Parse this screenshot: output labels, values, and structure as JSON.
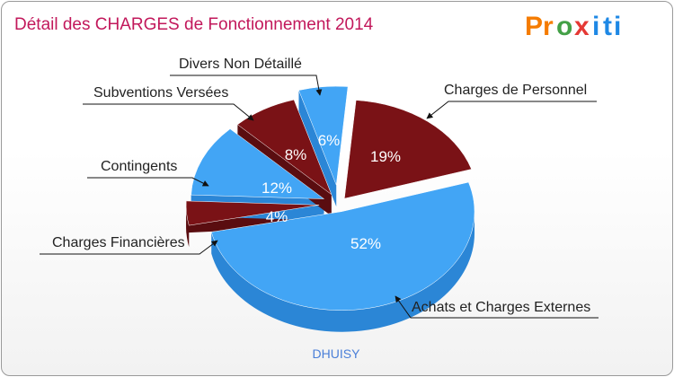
{
  "chart_data": {
    "type": "pie",
    "title": "Détail des CHARGES de Fonctionnement 2014",
    "subtitle": "DHUISY",
    "slices": [
      {
        "label": "Charges de Personnel",
        "value": 19,
        "pct_label": "19%",
        "color": "#7a1216",
        "side": "#5a0d10"
      },
      {
        "label": "Achats et Charges Externes",
        "value": 52,
        "pct_label": "52%",
        "color": "#42a5f5",
        "side": "#2b86d6"
      },
      {
        "label": "Charges Financières",
        "value": 4,
        "pct_label": "4%",
        "color": "#7a1216",
        "side": "#5a0d10"
      },
      {
        "label": "Contingents",
        "value": 12,
        "pct_label": "12%",
        "color": "#42a5f5",
        "side": "#2b86d6"
      },
      {
        "label": "Subventions Versées",
        "value": 8,
        "pct_label": "8%",
        "color": "#7a1216",
        "side": "#5a0d10"
      },
      {
        "label": "Divers Non Détaillé",
        "value": 6,
        "pct_label": "6%",
        "color": "#42a5f5",
        "side": "#2b86d6"
      }
    ]
  },
  "brand": {
    "letters": [
      "P",
      "r",
      "o",
      "x",
      "i",
      "t",
      "i"
    ],
    "colors": [
      "#f57c00",
      "#f57c00",
      "#43a047",
      "#e53935",
      "#1e88e5",
      "#1e88e5",
      "#1e88e5"
    ]
  }
}
